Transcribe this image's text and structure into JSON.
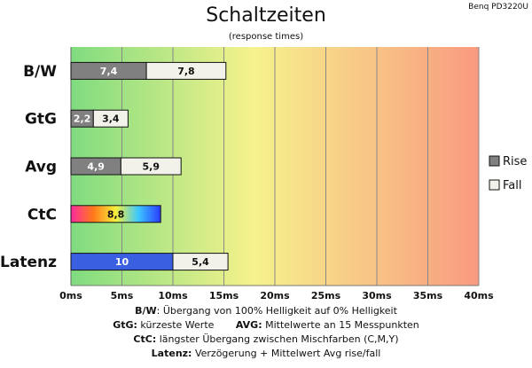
{
  "header": {
    "title": "Schaltzeiten",
    "subtitle": "(response times)",
    "model": "Benq PD3220U"
  },
  "chart_data": {
    "type": "bar",
    "orientation": "horizontal",
    "stacked": true,
    "categories": [
      "B/W",
      "GtG",
      "Avg",
      "CtC",
      "Latenz"
    ],
    "series": [
      {
        "name": "Rise",
        "values": [
          7.4,
          2.2,
          4.9,
          null,
          null
        ],
        "labels": [
          "7,4",
          "2,2",
          "4,9",
          "",
          ""
        ],
        "color": "#808080"
      },
      {
        "name": "Fall",
        "values": [
          7.8,
          3.4,
          5.9,
          null,
          5.4
        ],
        "labels": [
          "7,8",
          "3,4",
          "5,9",
          "",
          "5,4"
        ],
        "color": "#f2f2ea"
      }
    ],
    "single_bars": [
      {
        "category": "CtC",
        "value": 8.8,
        "label": "8,8",
        "fill": "rainbow"
      },
      {
        "category": "Latenz",
        "value": 10,
        "label": "10",
        "fill": "#3a5fe0",
        "followed_by_series": "Fall"
      }
    ],
    "x_ticks": [
      "0ms",
      "5ms",
      "10ms",
      "15ms",
      "20ms",
      "25ms",
      "30ms",
      "35ms",
      "40ms"
    ],
    "xlim": [
      0,
      40
    ],
    "grid": "vertical",
    "background_gradient": [
      "#7fdc7f",
      "#f6f28c",
      "#f99a80"
    ],
    "legend_placement": "right"
  },
  "notes": {
    "line1_key": "B/W",
    "line1_text": ":  Übergang von 100% Helligkeit auf 0% Helligkeit",
    "line2_key_a": "GtG:",
    "line2_text_a": " kürzeste  Werte",
    "line2_key_b": "AVG:",
    "line2_text_b": " Mittelwerte  an 15 Messpunkten",
    "line3_key": "CtC:",
    "line3_text": " längster Übergang  zwischen Mischfarben  (C,M,Y)",
    "line4_key": "Latenz:",
    "line4_text": " Verzögerung  + Mittelwert  Avg rise/fall"
  }
}
